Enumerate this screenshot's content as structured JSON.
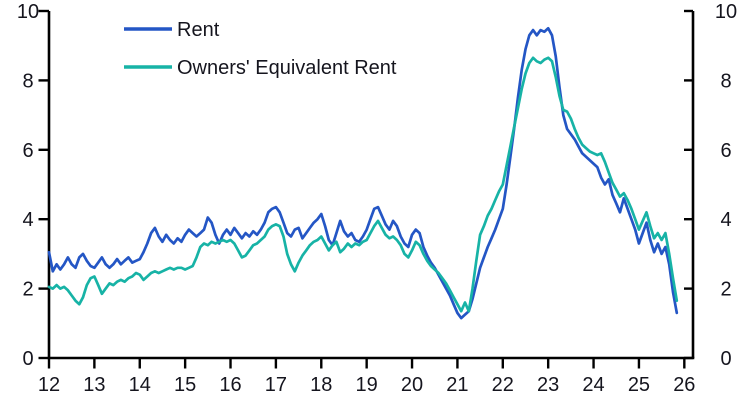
{
  "chart_data": {
    "type": "line",
    "title": "",
    "unit": "%, YoY",
    "frequency": "monthly",
    "start_year": 2012,
    "grid": false,
    "legend_position": "top-left",
    "x_axis": {
      "ticks": [
        "12",
        "13",
        "14",
        "15",
        "16",
        "17",
        "18",
        "19",
        "20",
        "21",
        "22",
        "23",
        "24",
        "25",
        "26"
      ]
    },
    "y_axis": {
      "ticks": [
        "0",
        "2",
        "4",
        "6",
        "8",
        "10"
      ],
      "min": 0,
      "max": 10,
      "sides": "both"
    },
    "series": [
      {
        "name": "Rent",
        "color": "#2456c5",
        "values": [
          3.05,
          2.5,
          2.7,
          2.55,
          2.7,
          2.9,
          2.7,
          2.6,
          2.9,
          3.0,
          2.8,
          2.65,
          2.6,
          2.75,
          2.9,
          2.7,
          2.6,
          2.7,
          2.85,
          2.7,
          2.8,
          2.9,
          2.75,
          2.8,
          2.85,
          3.05,
          3.3,
          3.6,
          3.75,
          3.5,
          3.35,
          3.55,
          3.4,
          3.3,
          3.45,
          3.35,
          3.55,
          3.7,
          3.6,
          3.5,
          3.6,
          3.7,
          4.05,
          3.9,
          3.55,
          3.3,
          3.55,
          3.7,
          3.55,
          3.75,
          3.6,
          3.45,
          3.6,
          3.5,
          3.65,
          3.55,
          3.7,
          3.9,
          4.2,
          4.3,
          4.35,
          4.2,
          3.9,
          3.6,
          3.5,
          3.7,
          3.75,
          3.45,
          3.6,
          3.75,
          3.9,
          4.0,
          4.15,
          3.8,
          3.4,
          3.25,
          3.6,
          3.95,
          3.65,
          3.5,
          3.6,
          3.4,
          3.35,
          3.5,
          3.7,
          4.0,
          4.3,
          4.35,
          4.1,
          3.85,
          3.7,
          3.95,
          3.8,
          3.5,
          3.3,
          3.2,
          3.55,
          3.7,
          3.6,
          3.2,
          2.95,
          2.75,
          2.6,
          2.4,
          2.2,
          2.0,
          1.8,
          1.55,
          1.3,
          1.15,
          1.25,
          1.35,
          1.7,
          2.15,
          2.6,
          2.9,
          3.2,
          3.45,
          3.7,
          4.0,
          4.3,
          5.0,
          5.8,
          6.6,
          7.5,
          8.3,
          8.9,
          9.3,
          9.45,
          9.3,
          9.45,
          9.4,
          9.5,
          9.3,
          8.7,
          7.8,
          7.0,
          6.6,
          6.45,
          6.3,
          6.1,
          5.9,
          5.8,
          5.7,
          5.6,
          5.5,
          5.2,
          5.0,
          5.15,
          4.7,
          4.45,
          4.2,
          4.6,
          4.3,
          4.0,
          3.7,
          3.3,
          3.6,
          3.9,
          3.4,
          3.05,
          3.3,
          3.0,
          3.2,
          2.7,
          1.9,
          1.3
        ]
      },
      {
        "name": "Owners' Equivalent Rent",
        "color": "#17b3a6",
        "values": [
          2.05,
          2.0,
          2.1,
          2.0,
          2.05,
          1.95,
          1.8,
          1.65,
          1.55,
          1.75,
          2.1,
          2.3,
          2.35,
          2.1,
          1.85,
          2.0,
          2.15,
          2.1,
          2.2,
          2.25,
          2.2,
          2.3,
          2.35,
          2.45,
          2.4,
          2.25,
          2.35,
          2.45,
          2.5,
          2.45,
          2.5,
          2.55,
          2.6,
          2.55,
          2.6,
          2.6,
          2.55,
          2.6,
          2.65,
          2.9,
          3.2,
          3.3,
          3.25,
          3.35,
          3.3,
          3.35,
          3.4,
          3.35,
          3.4,
          3.3,
          3.1,
          2.9,
          2.95,
          3.1,
          3.25,
          3.3,
          3.4,
          3.5,
          3.7,
          3.8,
          3.85,
          3.8,
          3.5,
          3.0,
          2.7,
          2.5,
          2.75,
          2.95,
          3.1,
          3.25,
          3.35,
          3.4,
          3.5,
          3.3,
          3.1,
          3.25,
          3.35,
          3.05,
          3.15,
          3.3,
          3.2,
          3.3,
          3.25,
          3.35,
          3.4,
          3.6,
          3.8,
          3.95,
          3.75,
          3.55,
          3.45,
          3.5,
          3.4,
          3.25,
          3.0,
          2.9,
          3.1,
          3.35,
          3.25,
          3.0,
          2.8,
          2.65,
          2.55,
          2.45,
          2.3,
          2.15,
          1.95,
          1.75,
          1.55,
          1.35,
          1.6,
          1.35,
          2.0,
          2.8,
          3.55,
          3.8,
          4.1,
          4.3,
          4.55,
          4.8,
          5.0,
          5.55,
          6.1,
          6.65,
          7.2,
          7.75,
          8.2,
          8.5,
          8.65,
          8.55,
          8.5,
          8.6,
          8.65,
          8.55,
          8.1,
          7.55,
          7.15,
          7.1,
          6.9,
          6.6,
          6.35,
          6.15,
          6.05,
          5.95,
          5.9,
          5.85,
          5.9,
          5.65,
          5.35,
          5.05,
          4.85,
          4.65,
          4.75,
          4.55,
          4.3,
          4.0,
          3.7,
          3.95,
          4.2,
          3.8,
          3.45,
          3.6,
          3.4,
          3.6,
          3.0,
          2.3,
          1.65
        ]
      }
    ]
  },
  "colors": {
    "axis": "#000000",
    "text": "#15151e",
    "background": "#ffffff"
  }
}
